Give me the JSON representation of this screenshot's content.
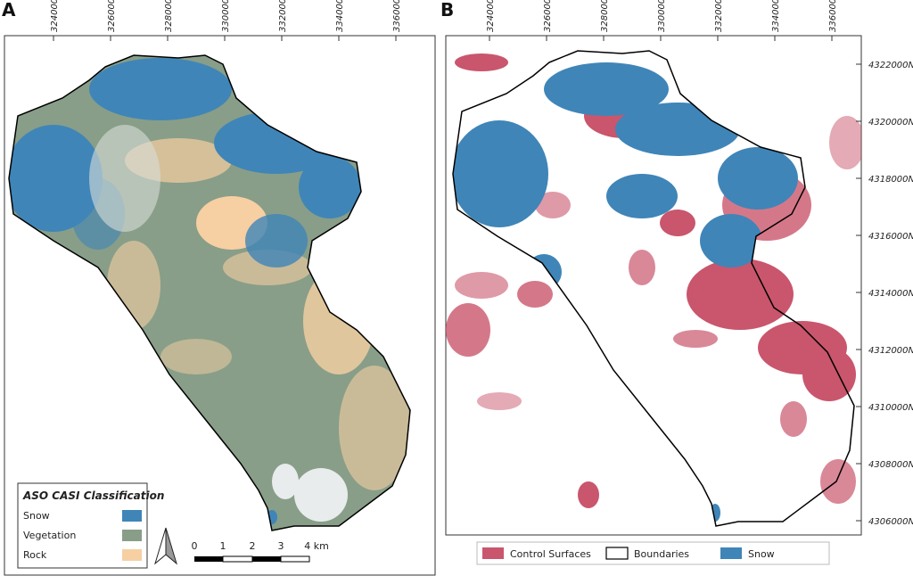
{
  "panels": [
    {
      "label": "A",
      "eastings": [
        "324000E",
        "326000E",
        "328000E",
        "330000E",
        "332000E",
        "334000E",
        "336000E"
      ],
      "legend": {
        "title": "ASO CASI Classification",
        "items": [
          {
            "label": "Snow",
            "color": "#3f85b8"
          },
          {
            "label": "Vegetation",
            "color": "#889e88"
          },
          {
            "label": "Rock",
            "color": "#f6cfa3"
          }
        ]
      },
      "scale_bar": [
        "0",
        "1",
        "2",
        "3",
        "4 km"
      ]
    },
    {
      "label": "B",
      "eastings": [
        "324000E",
        "326000E",
        "328000E",
        "330000E",
        "332000E",
        "334000E",
        "336000E"
      ],
      "northings": [
        "4322000N",
        "4320000N",
        "4318000N",
        "4316000N",
        "4314000N",
        "4312000N",
        "4310000N",
        "4308000N",
        "4306000N"
      ],
      "legend": {
        "items": [
          {
            "label": "Control Surfaces",
            "color": "#c9566c"
          },
          {
            "label": "Boundaries",
            "color": "#ffffff"
          },
          {
            "label": "Snow",
            "color": "#3f85b8"
          }
        ]
      }
    }
  ]
}
